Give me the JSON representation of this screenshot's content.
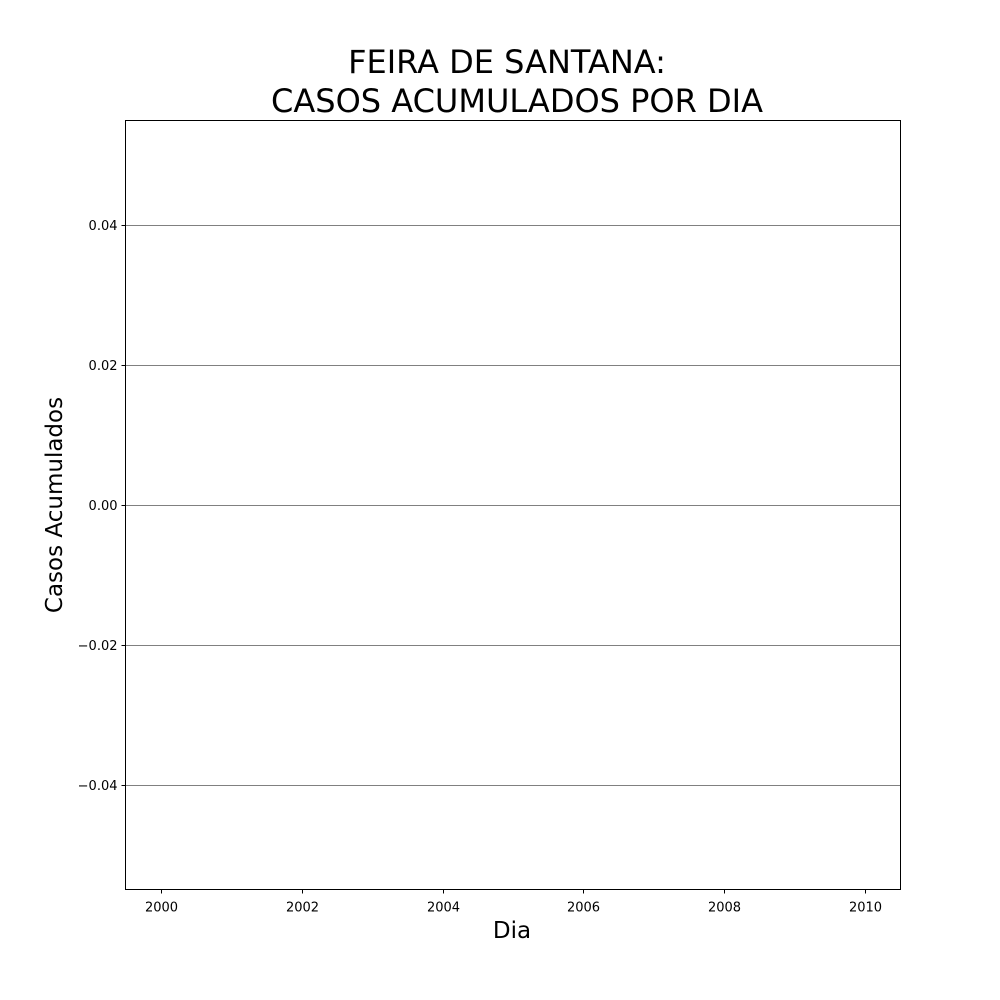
{
  "chart_data": {
    "type": "line",
    "title_lines": [
      "FEIRA DE SANTANA:",
      "CASOS ACUMULADOS POR DIA"
    ],
    "xlabel": "Dia",
    "ylabel": "Casos Acumulados",
    "xlim": [
      1999.5,
      2010.5
    ],
    "ylim": [
      -0.055,
      0.055
    ],
    "x_ticks": [
      2000,
      2002,
      2004,
      2006,
      2008,
      2010
    ],
    "x_tick_labels": [
      "2000",
      "2002",
      "2004",
      "2006",
      "2008",
      "2010"
    ],
    "y_ticks": [
      0.04,
      0.02,
      0.0,
      -0.02,
      -0.04
    ],
    "y_tick_labels": [
      "0.04",
      "0.02",
      "0.00",
      "−0.02",
      "−0.04"
    ],
    "grid": "y",
    "grid_color": "#808080",
    "series": []
  }
}
